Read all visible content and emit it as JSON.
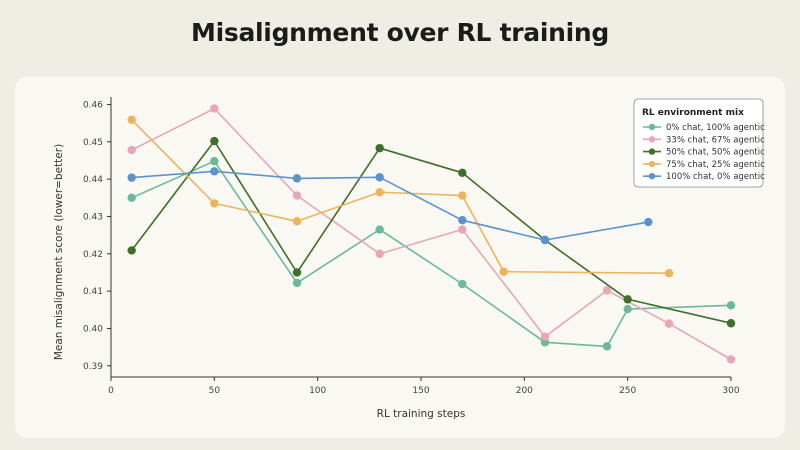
{
  "chart_data": {
    "type": "line",
    "title": "Misalignment over RL training",
    "xlabel": "RL training steps",
    "ylabel": "Mean misalignment score (lower=better)",
    "xlim": [
      0,
      300
    ],
    "ylim": [
      0.387,
      0.462
    ],
    "xticks": [
      0,
      50,
      100,
      150,
      200,
      250,
      300
    ],
    "yticks": [
      0.39,
      0.4,
      0.41,
      0.42,
      0.43,
      0.44,
      0.45,
      0.46
    ],
    "ytick_labels": [
      "0.39",
      "0.40",
      "0.41",
      "0.42",
      "0.43",
      "0.44",
      "0.45",
      "0.46"
    ],
    "grid": false,
    "legend": {
      "title": "RL environment mix",
      "position": "top-right"
    },
    "series": [
      {
        "name": "0% chat, 100% agentic",
        "color": "#6bb89a",
        "x": [
          10,
          50,
          90,
          130,
          170,
          210,
          240,
          250,
          300
        ],
        "y": [
          0.435,
          0.4448,
          0.4122,
          0.4265,
          0.4119,
          0.3963,
          0.3952,
          0.4052,
          0.4062
        ]
      },
      {
        "name": "33% chat, 67% agentic",
        "color": "#e8a6b8",
        "x": [
          10,
          50,
          90,
          130,
          170,
          210,
          240,
          270,
          300
        ],
        "y": [
          0.4478,
          0.4589,
          0.4356,
          0.42,
          0.4265,
          0.3978,
          0.4102,
          0.4013,
          0.3917
        ]
      },
      {
        "name": "50% chat, 50% agentic",
        "color": "#3f6f2a",
        "x": [
          10,
          50,
          90,
          130,
          170,
          210,
          250,
          300
        ],
        "y": [
          0.4209,
          0.4502,
          0.415,
          0.4483,
          0.4417,
          0.4237,
          0.4078,
          0.4014
        ]
      },
      {
        "name": "75% chat, 25% agentic",
        "color": "#efb45a",
        "x": [
          10,
          50,
          90,
          130,
          170,
          190,
          270
        ],
        "y": [
          0.4559,
          0.4335,
          0.4287,
          0.4365,
          0.4356,
          0.4152,
          0.4148
        ]
      },
      {
        "name": "100% chat, 0% agentic",
        "color": "#5b93cc",
        "x": [
          10,
          50,
          90,
          130,
          170,
          210,
          260
        ],
        "y": [
          0.4404,
          0.4421,
          0.4402,
          0.4405,
          0.429,
          0.4237,
          0.4285
        ]
      }
    ]
  }
}
